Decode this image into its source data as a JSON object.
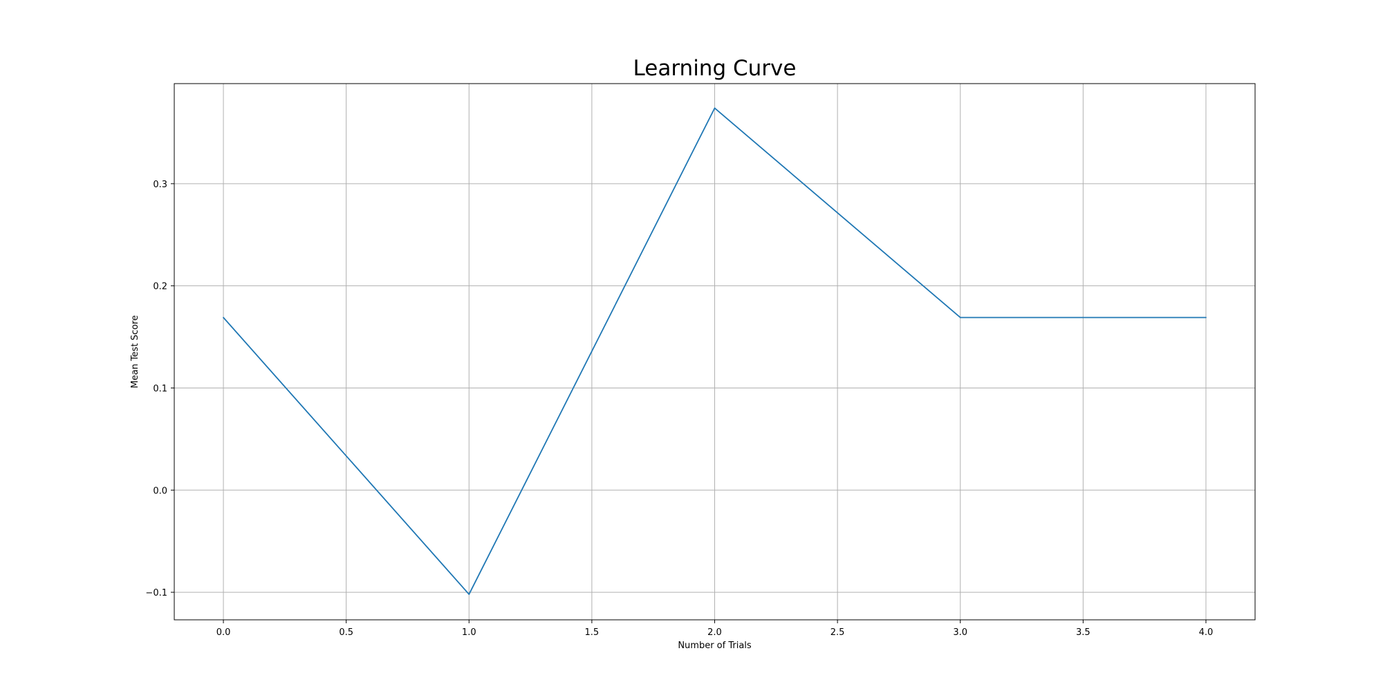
{
  "chart_data": {
    "type": "line",
    "title": "Learning Curve",
    "xlabel": "Number of Trials",
    "ylabel": "Mean Test Score",
    "x": [
      0,
      1,
      2,
      3,
      4
    ],
    "series": [
      {
        "values": [
          0.169,
          -0.102,
          0.374,
          0.169,
          0.169
        ],
        "color": "#1f77b4"
      }
    ],
    "xlim": [
      -0.2,
      4.2
    ],
    "ylim": [
      -0.127,
      0.398
    ],
    "xticks": [
      0.0,
      0.5,
      1.0,
      1.5,
      2.0,
      2.5,
      3.0,
      3.5,
      4.0
    ],
    "xtick_labels": [
      "0.0",
      "0.5",
      "1.0",
      "1.5",
      "2.0",
      "2.5",
      "3.0",
      "3.5",
      "4.0"
    ],
    "yticks": [
      -0.1,
      0.0,
      0.1,
      0.2,
      0.3
    ],
    "ytick_labels": [
      "−0.1",
      "0.0",
      "0.1",
      "0.2",
      "0.3"
    ],
    "grid": true,
    "legend": "none"
  }
}
